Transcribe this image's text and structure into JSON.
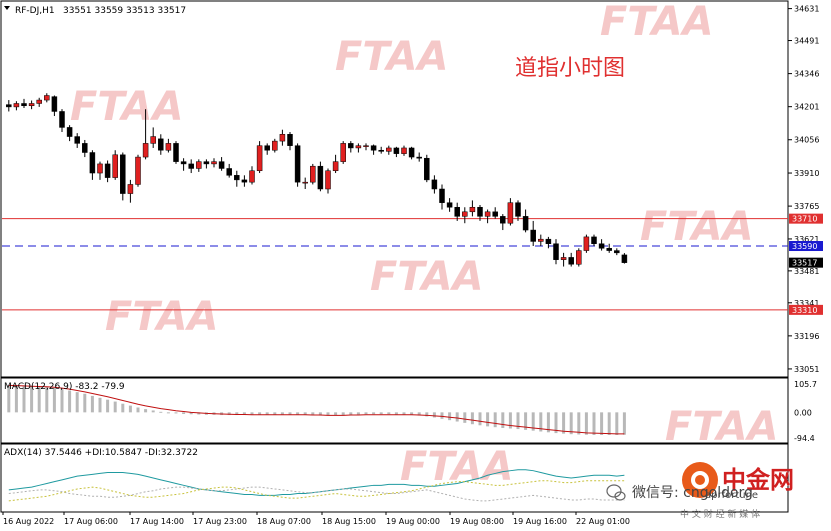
{
  "chart_data": [
    {
      "type": "candlestick",
      "symbol_header": "RF-DJ,H1",
      "ohlc_header": "33551 33559 33513 33517",
      "annotation": "道指小时图",
      "y_ticks": [
        34631,
        34491,
        34346,
        34201,
        34056,
        33910,
        33765,
        33621,
        33481,
        33341,
        33196,
        33051
      ],
      "ylim": [
        33020,
        34660
      ],
      "x_ticks": [
        "16 Aug 2022",
        "17 Aug 06:00",
        "17 Aug 14:00",
        "17 Aug 23:00",
        "18 Aug 07:00",
        "18 Aug 15:00",
        "19 Aug 00:00",
        "19 Aug 08:00",
        "19 Aug 16:00",
        "22 Aug 01:00"
      ],
      "horizontal_lines": [
        {
          "label": "33710",
          "value": 33710,
          "style": "solid",
          "color": "#e03030"
        },
        {
          "label": "33590",
          "value": 33590,
          "style": "dashed",
          "color": "#1a1ad0"
        },
        {
          "label": "33517",
          "value": 33517,
          "style": "price",
          "color": "#000000"
        },
        {
          "label": "33310",
          "value": 33310,
          "style": "solid",
          "color": "#e03030"
        }
      ],
      "candles": [
        {
          "o": 34210,
          "h": 34230,
          "l": 34180,
          "c": 34200
        },
        {
          "o": 34200,
          "h": 34225,
          "l": 34185,
          "c": 34215
        },
        {
          "o": 34215,
          "h": 34235,
          "l": 34195,
          "c": 34205
        },
        {
          "o": 34205,
          "h": 34228,
          "l": 34190,
          "c": 34215
        },
        {
          "o": 34215,
          "h": 34240,
          "l": 34200,
          "c": 34230
        },
        {
          "o": 34230,
          "h": 34260,
          "l": 34220,
          "c": 34250
        },
        {
          "o": 34245,
          "h": 34250,
          "l": 34160,
          "c": 34180
        },
        {
          "o": 34180,
          "h": 34190,
          "l": 34090,
          "c": 34110
        },
        {
          "o": 34110,
          "h": 34120,
          "l": 34050,
          "c": 34070
        },
        {
          "o": 34070,
          "h": 34085,
          "l": 34020,
          "c": 34040
        },
        {
          "o": 34040,
          "h": 34055,
          "l": 33980,
          "c": 34000
        },
        {
          "o": 34000,
          "h": 34010,
          "l": 33880,
          "c": 33910
        },
        {
          "o": 33910,
          "h": 33960,
          "l": 33880,
          "c": 33950
        },
        {
          "o": 33950,
          "h": 33965,
          "l": 33870,
          "c": 33890
        },
        {
          "o": 33890,
          "h": 34010,
          "l": 33880,
          "c": 33990
        },
        {
          "o": 33990,
          "h": 34000,
          "l": 33790,
          "c": 33820
        },
        {
          "o": 33820,
          "h": 33880,
          "l": 33780,
          "c": 33860
        },
        {
          "o": 33860,
          "h": 33990,
          "l": 33850,
          "c": 33980
        },
        {
          "o": 33980,
          "h": 34190,
          "l": 33970,
          "c": 34040
        },
        {
          "o": 34040,
          "h": 34110,
          "l": 34020,
          "c": 34070
        },
        {
          "o": 34060,
          "h": 34080,
          "l": 33990,
          "c": 34010
        },
        {
          "o": 34010,
          "h": 34060,
          "l": 34000,
          "c": 34040
        },
        {
          "o": 34040,
          "h": 34050,
          "l": 33950,
          "c": 33960
        },
        {
          "o": 33960,
          "h": 33975,
          "l": 33920,
          "c": 33950
        },
        {
          "o": 33950,
          "h": 33970,
          "l": 33910,
          "c": 33930
        },
        {
          "o": 33930,
          "h": 33970,
          "l": 33915,
          "c": 33960
        },
        {
          "o": 33960,
          "h": 33970,
          "l": 33930,
          "c": 33950
        },
        {
          "o": 33950,
          "h": 33975,
          "l": 33935,
          "c": 33960
        },
        {
          "o": 33960,
          "h": 33980,
          "l": 33920,
          "c": 33930
        },
        {
          "o": 33930,
          "h": 33950,
          "l": 33890,
          "c": 33900
        },
        {
          "o": 33900,
          "h": 33920,
          "l": 33850,
          "c": 33880
        },
        {
          "o": 33880,
          "h": 33900,
          "l": 33850,
          "c": 33870
        },
        {
          "o": 33870,
          "h": 33940,
          "l": 33860,
          "c": 33920
        },
        {
          "o": 33920,
          "h": 34050,
          "l": 33910,
          "c": 34030
        },
        {
          "o": 34030,
          "h": 34040,
          "l": 33990,
          "c": 34010
        },
        {
          "o": 34010,
          "h": 34060,
          "l": 34000,
          "c": 34050
        },
        {
          "o": 34050,
          "h": 34100,
          "l": 34030,
          "c": 34080
        },
        {
          "o": 34080,
          "h": 34090,
          "l": 34010,
          "c": 34030
        },
        {
          "o": 34030,
          "h": 34040,
          "l": 33850,
          "c": 33870
        },
        {
          "o": 33870,
          "h": 33890,
          "l": 33840,
          "c": 33870
        },
        {
          "o": 33870,
          "h": 33950,
          "l": 33860,
          "c": 33940
        },
        {
          "o": 33940,
          "h": 33960,
          "l": 33830,
          "c": 33840
        },
        {
          "o": 33840,
          "h": 33930,
          "l": 33820,
          "c": 33920
        },
        {
          "o": 33920,
          "h": 33990,
          "l": 33910,
          "c": 33960
        },
        {
          "o": 33960,
          "h": 34050,
          "l": 33950,
          "c": 34040
        },
        {
          "o": 34040,
          "h": 34050,
          "l": 34000,
          "c": 34020
        },
        {
          "o": 34020,
          "h": 34040,
          "l": 34000,
          "c": 34030
        },
        {
          "o": 34030,
          "h": 34040,
          "l": 34010,
          "c": 34030
        },
        {
          "o": 34030,
          "h": 34035,
          "l": 33990,
          "c": 34010
        },
        {
          "o": 34010,
          "h": 34025,
          "l": 33995,
          "c": 34005
        },
        {
          "o": 34005,
          "h": 34030,
          "l": 33990,
          "c": 34020
        },
        {
          "o": 34020,
          "h": 34025,
          "l": 33980,
          "c": 33995
        },
        {
          "o": 33995,
          "h": 34030,
          "l": 33985,
          "c": 34020
        },
        {
          "o": 34020,
          "h": 34025,
          "l": 33970,
          "c": 33980
        },
        {
          "o": 33980,
          "h": 34000,
          "l": 33960,
          "c": 33975
        },
        {
          "o": 33975,
          "h": 33990,
          "l": 33870,
          "c": 33880
        },
        {
          "o": 33880,
          "h": 33900,
          "l": 33820,
          "c": 33840
        },
        {
          "o": 33840,
          "h": 33860,
          "l": 33750,
          "c": 33780
        },
        {
          "o": 33780,
          "h": 33800,
          "l": 33740,
          "c": 33760
        },
        {
          "o": 33760,
          "h": 33780,
          "l": 33700,
          "c": 33720
        },
        {
          "o": 33720,
          "h": 33760,
          "l": 33690,
          "c": 33740
        },
        {
          "o": 33740,
          "h": 33790,
          "l": 33720,
          "c": 33760
        },
        {
          "o": 33760,
          "h": 33770,
          "l": 33700,
          "c": 33720
        },
        {
          "o": 33720,
          "h": 33750,
          "l": 33690,
          "c": 33740
        },
        {
          "o": 33740,
          "h": 33760,
          "l": 33710,
          "c": 33720
        },
        {
          "o": 33720,
          "h": 33730,
          "l": 33660,
          "c": 33690
        },
        {
          "o": 33690,
          "h": 33800,
          "l": 33680,
          "c": 33780
        },
        {
          "o": 33780,
          "h": 33790,
          "l": 33700,
          "c": 33720
        },
        {
          "o": 33720,
          "h": 33750,
          "l": 33650,
          "c": 33660
        },
        {
          "o": 33660,
          "h": 33700,
          "l": 33590,
          "c": 33610
        },
        {
          "o": 33610,
          "h": 33640,
          "l": 33590,
          "c": 33620
        },
        {
          "o": 33620,
          "h": 33630,
          "l": 33580,
          "c": 33600
        },
        {
          "o": 33600,
          "h": 33620,
          "l": 33510,
          "c": 33530
        },
        {
          "o": 33530,
          "h": 33560,
          "l": 33500,
          "c": 33540
        },
        {
          "o": 33540,
          "h": 33560,
          "l": 33500,
          "c": 33510
        },
        {
          "o": 33510,
          "h": 33580,
          "l": 33500,
          "c": 33570
        },
        {
          "o": 33570,
          "h": 33640,
          "l": 33560,
          "c": 33630
        },
        {
          "o": 33630,
          "h": 33640,
          "l": 33590,
          "c": 33600
        },
        {
          "o": 33600,
          "h": 33620,
          "l": 33570,
          "c": 33580
        },
        {
          "o": 33580,
          "h": 33600,
          "l": 33560,
          "c": 33570
        },
        {
          "o": 33570,
          "h": 33580,
          "l": 33550,
          "c": 33560
        },
        {
          "o": 33551,
          "h": 33559,
          "l": 33513,
          "c": 33517
        }
      ]
    },
    {
      "type": "bar",
      "indicator": "MACD",
      "header": "MACD(12,26,9) -83.2 -79.9",
      "y_ticks": [
        "105.7",
        "0.00",
        "-94.4"
      ],
      "ylim": [
        -110,
        120
      ],
      "values": [
        102,
        100,
        98,
        97,
        96,
        94,
        91,
        86,
        81,
        75,
        69,
        61,
        54,
        47,
        40,
        32,
        25,
        18,
        12,
        7,
        2,
        -1,
        -4,
        -6,
        -7,
        -8,
        -9,
        -9,
        -10,
        -10,
        -10,
        -10,
        -10,
        -9,
        -9,
        -8,
        -8,
        -8,
        -9,
        -10,
        -11,
        -12,
        -12,
        -11,
        -10,
        -9,
        -8,
        -7,
        -7,
        -7,
        -7,
        -8,
        -9,
        -10,
        -12,
        -15,
        -19,
        -24,
        -29,
        -34,
        -39,
        -44,
        -48,
        -52,
        -55,
        -58,
        -60,
        -62,
        -65,
        -68,
        -71,
        -74,
        -77,
        -79,
        -81,
        -82,
        -83,
        -84,
        -84,
        -84,
        -84,
        -83
      ],
      "signal": [
        100,
        99,
        98,
        97,
        96,
        95,
        93,
        90,
        86,
        81,
        76,
        70,
        64,
        58,
        51,
        44,
        37,
        30,
        24,
        19,
        14,
        10,
        6,
        3,
        0,
        -2,
        -4,
        -5,
        -6,
        -7,
        -8,
        -8,
        -9,
        -9,
        -9,
        -9,
        -9,
        -9,
        -9,
        -9,
        -10,
        -10,
        -11,
        -11,
        -11,
        -10,
        -10,
        -9,
        -9,
        -9,
        -9,
        -9,
        -9,
        -9,
        -10,
        -11,
        -13,
        -15,
        -18,
        -21,
        -25,
        -29,
        -33,
        -37,
        -41,
        -45,
        -49,
        -52,
        -55,
        -58,
        -61,
        -64,
        -67,
        -70,
        -72,
        -74,
        -76,
        -77,
        -78,
        -79,
        -80,
        -80
      ]
    },
    {
      "type": "line",
      "indicator": "ADX",
      "header": "ADX(14) 37.5446 +DI:10.5847 -DI:32.3722",
      "ylim": [
        0,
        70
      ],
      "series": [
        {
          "color": "#1f9aa0",
          "values": [
            22,
            23,
            24,
            25,
            27,
            29,
            31,
            33,
            35,
            37,
            38,
            39,
            40,
            41,
            41,
            41,
            40,
            39,
            37,
            35,
            33,
            31,
            29,
            27,
            25,
            23,
            22,
            21,
            20,
            19,
            18,
            17,
            17,
            16,
            16,
            16,
            17,
            17,
            18,
            18,
            19,
            20,
            21,
            22,
            23,
            24,
            25,
            26,
            27,
            27,
            28,
            28,
            28,
            27,
            27,
            26,
            26,
            27,
            28,
            29,
            31,
            33,
            35,
            38,
            40,
            42,
            43,
            44,
            44,
            43,
            41,
            39,
            37,
            36,
            35,
            36,
            37,
            38,
            38,
            38,
            37,
            38
          ]
        },
        {
          "color": "#b0b0b0",
          "values": [
            18,
            19,
            20,
            21,
            22,
            22,
            21,
            20,
            18,
            17,
            16,
            15,
            15,
            14,
            14,
            15,
            16,
            18,
            20,
            21,
            23,
            24,
            25,
            25,
            24,
            23,
            22,
            21,
            21,
            22,
            23,
            24,
            25,
            25,
            24,
            23,
            22,
            21,
            20,
            19,
            19,
            20,
            21,
            22,
            23,
            23,
            22,
            21,
            20,
            19,
            18,
            18,
            19,
            20,
            21,
            22,
            20,
            18,
            16,
            14,
            12,
            11,
            10,
            10,
            11,
            12,
            13,
            14,
            15,
            16,
            15,
            14,
            13,
            12,
            11,
            11,
            12,
            12,
            11,
            11,
            11,
            11
          ]
        },
        {
          "color": "#c8c23c",
          "values": [
            10,
            11,
            12,
            13,
            14,
            15,
            17,
            19,
            21,
            23,
            24,
            25,
            24,
            22,
            20,
            18,
            16,
            15,
            14,
            14,
            15,
            16,
            17,
            18,
            20,
            22,
            23,
            24,
            25,
            25,
            24,
            22,
            20,
            18,
            16,
            15,
            14,
            13,
            13,
            14,
            15,
            16,
            17,
            18,
            17,
            16,
            15,
            15,
            16,
            17,
            18,
            19,
            20,
            21,
            23,
            25,
            27,
            29,
            30,
            31,
            31,
            30,
            29,
            28,
            27,
            27,
            28,
            29,
            30,
            31,
            32,
            32,
            31,
            30,
            30,
            31,
            32,
            32,
            32,
            32,
            32,
            32
          ]
        }
      ]
    }
  ],
  "watermarks": [
    "FTAA",
    "FTAA",
    "FTAA",
    "FTAA",
    "FTAA",
    "FTAA",
    "FTAA",
    "FTAA"
  ],
  "brand": {
    "name": "中金网",
    "subtitle": "中 文 财 经 新 媒 体",
    "wechat": "微信号: cngoldorg",
    "partial_url": "aprfortune"
  }
}
